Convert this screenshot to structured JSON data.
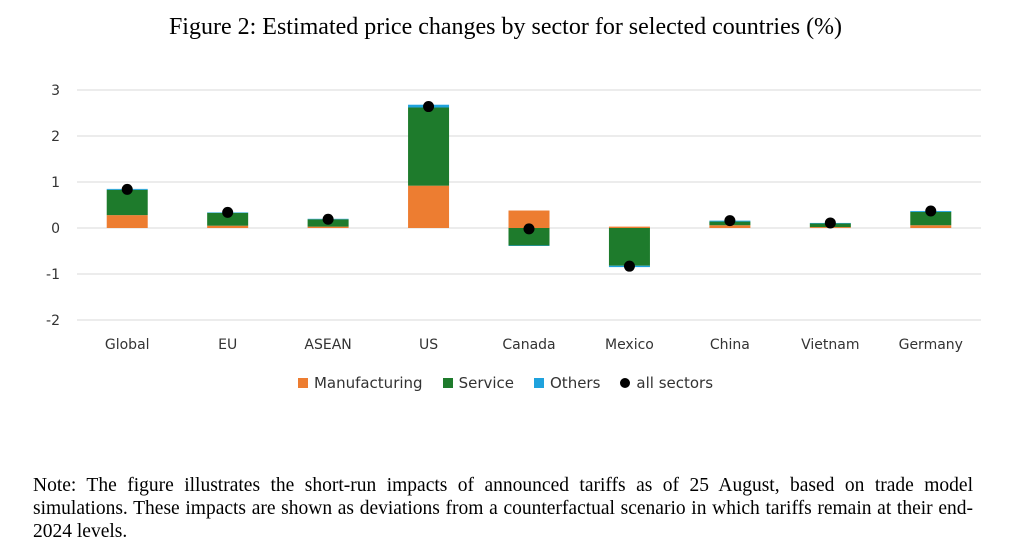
{
  "title": "Figure 2: Estimated price changes by sector for selected countries (%)",
  "note": "Note: The figure illustrates the short-run impacts of announced tariffs as of 25 August, based on trade model simulations. These impacts are shown as deviations from a counterfactual scenario in which tariffs remain at their end-2024 levels.",
  "legend": {
    "manufacturing": "Manufacturing",
    "service": "Service",
    "others": "Others",
    "all": "all sectors"
  },
  "colors": {
    "manufacturing": "#ed7d31",
    "service": "#1e7b2c",
    "others": "#1fa2dd",
    "all": "#000000",
    "grid": "#d9d9d9"
  },
  "chart_data": {
    "type": "bar",
    "stacked": true,
    "title": "Figure 2: Estimated price changes by sector for selected countries (%)",
    "categories": [
      "Global",
      "EU",
      "ASEAN",
      "US",
      "Canada",
      "Mexico",
      "China",
      "Vietnam",
      "Germany"
    ],
    "ylim": [
      -2,
      3
    ],
    "yticks": [
      3,
      2,
      1,
      0,
      -1,
      -2
    ],
    "grid": true,
    "legend_position": "bottom",
    "series": [
      {
        "name": "Manufacturing",
        "values": [
          0.28,
          0.05,
          0.03,
          0.92,
          0.38,
          0.03,
          0.06,
          0.02,
          0.06
        ]
      },
      {
        "name": "Service",
        "values": [
          0.55,
          0.28,
          0.16,
          1.7,
          -0.38,
          -0.82,
          0.08,
          0.08,
          0.29
        ]
      },
      {
        "name": "Others",
        "values": [
          0.02,
          0.01,
          0.01,
          0.06,
          -0.01,
          -0.03,
          0.02,
          0.01,
          0.02
        ]
      }
    ],
    "points": {
      "name": "all sectors",
      "values": [
        0.84,
        0.34,
        0.19,
        2.64,
        -0.02,
        -0.83,
        0.16,
        0.11,
        0.37
      ]
    }
  }
}
